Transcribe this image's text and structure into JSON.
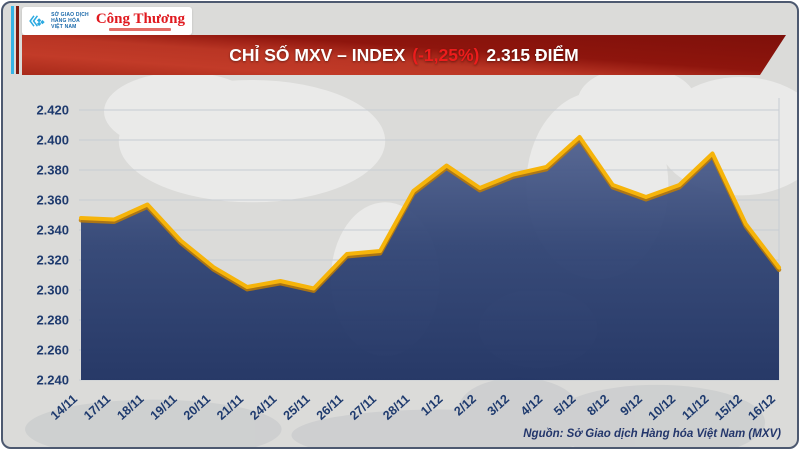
{
  "header": {
    "logo": {
      "mxv_lines": [
        "SỞ GIAO DỊCH",
        "HÀNG HÓA",
        "VIỆT NAM"
      ],
      "congthuong": "Công Thương"
    },
    "banner": {
      "title_prefix": "CHỈ SỐ MXV – INDEX",
      "change": "(-1,25%)",
      "value": "2.315 ĐIỂM"
    }
  },
  "chart_data": {
    "type": "area",
    "title": "Chỉ số MXV-Index",
    "categories": [
      "14/11",
      "17/11",
      "18/11",
      "19/11",
      "20/11",
      "21/11",
      "24/11",
      "25/11",
      "26/11",
      "27/11",
      "28/11",
      "1/12",
      "2/12",
      "3/12",
      "4/12",
      "5/12",
      "8/12",
      "9/12",
      "10/12",
      "11/12",
      "15/12",
      "16/12"
    ],
    "values": [
      2348,
      2347,
      2357,
      2333,
      2315,
      2302,
      2306,
      2301,
      2324,
      2326,
      2366,
      2383,
      2368,
      2377,
      2382,
      2402,
      2370,
      2362,
      2370,
      2391,
      2344,
      2315
    ],
    "ylim": [
      2240,
      2420
    ],
    "ytick_step": 20,
    "ytick_labels": [
      "2.420",
      "2.400",
      "2.380",
      "2.360",
      "2.340",
      "2.320",
      "2.300",
      "2.280",
      "2.260",
      "2.240"
    ],
    "grid": "horizontal",
    "legend": "none",
    "colors": {
      "line": "#F6B40A",
      "line_shadow": "#C07C04",
      "area_top": "#50618F",
      "area_mid": "#2E4273",
      "area_bottom": "#1C2F60",
      "labels": "#1E3A6E",
      "grid": "#C7CCD4",
      "change_accent": "#ED1C1C"
    }
  },
  "footer": {
    "source": "Nguồn: Sở Giao dịch Hàng hóa Việt Nam (MXV)"
  }
}
